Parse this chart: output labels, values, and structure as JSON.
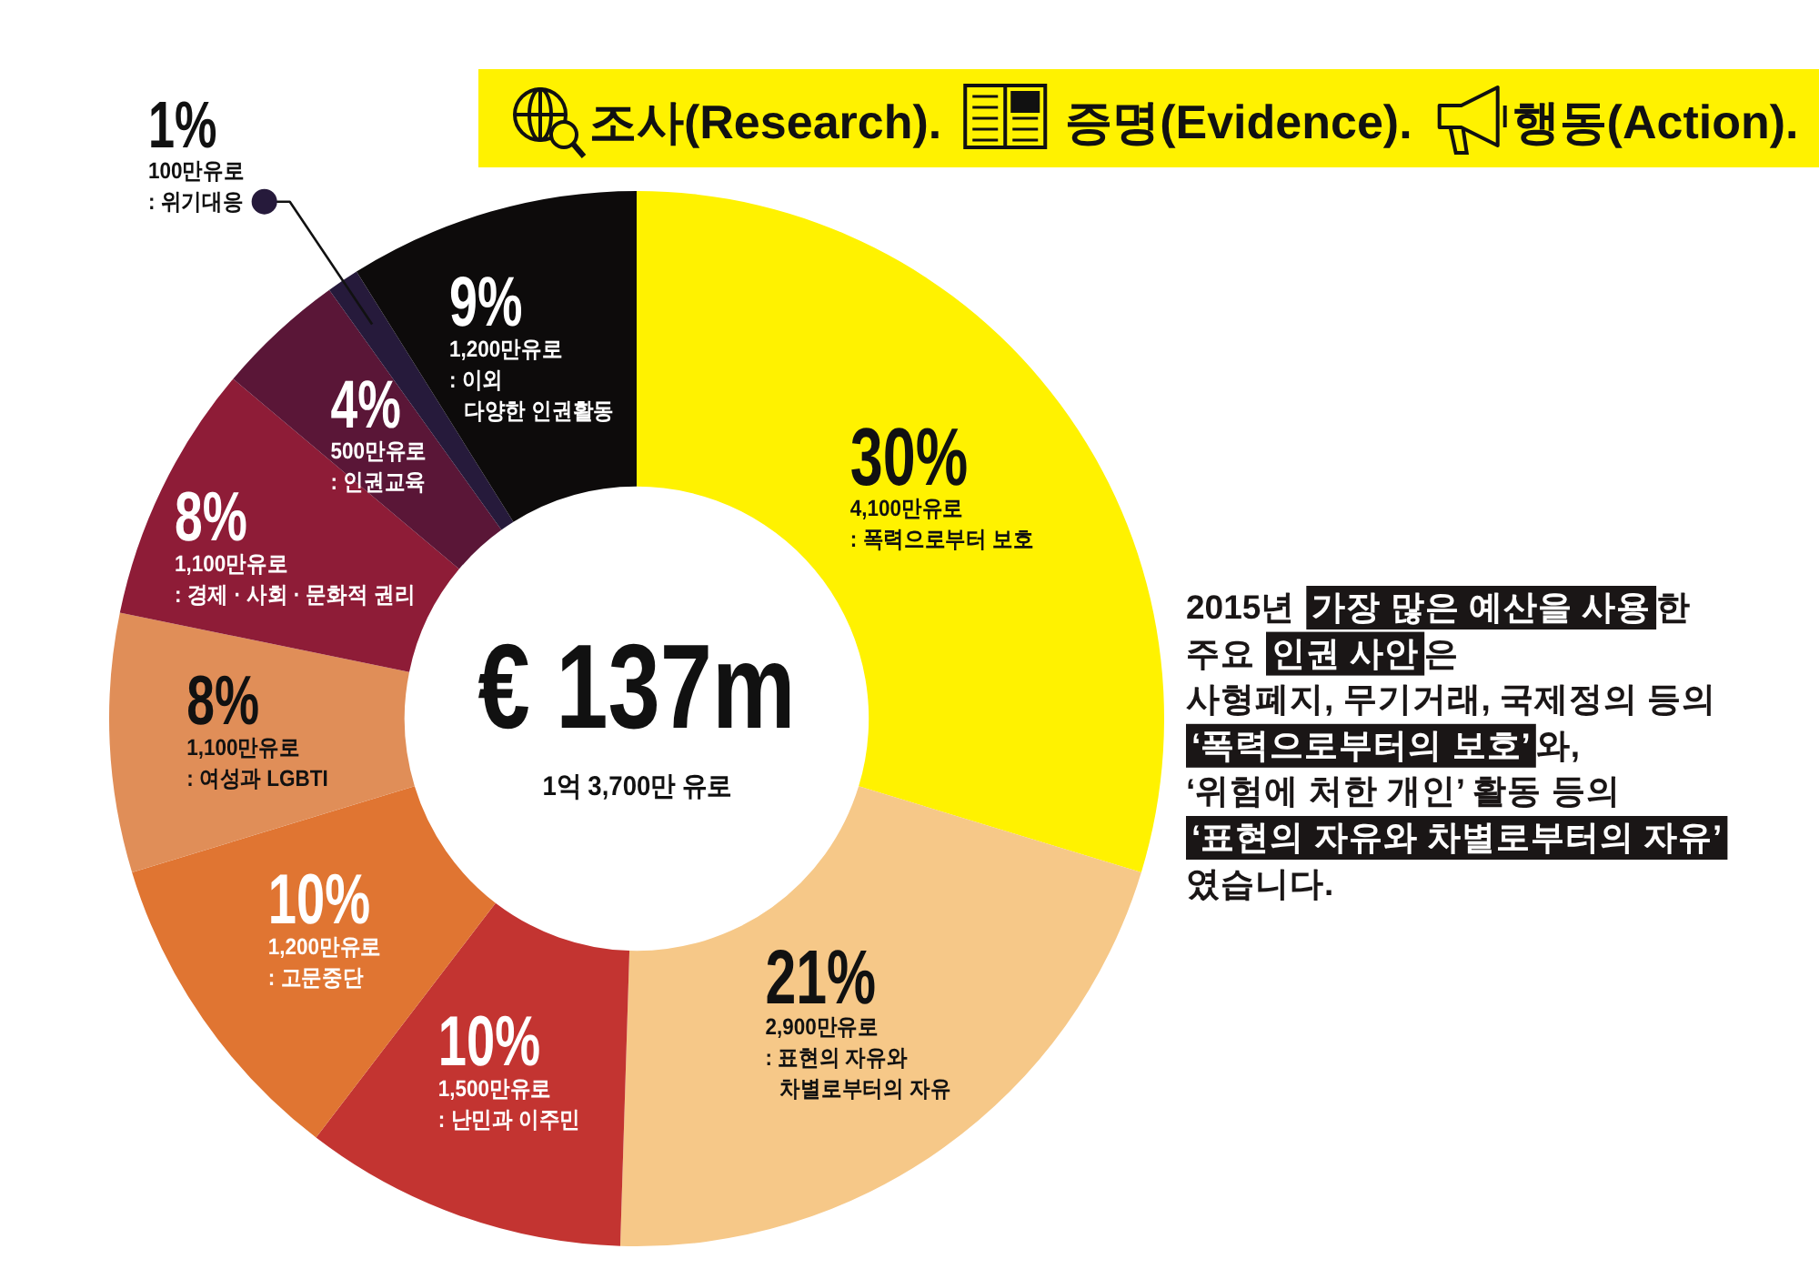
{
  "chart_data": {
    "type": "donut",
    "categories": [
      ": 폭력으로부터 보호",
      ": 표현의 자유와\n차별로부터의 자유",
      ": 난민과 이주민",
      ": 고문중단",
      ": 여성과 LGBTI",
      ": 경제 · 사회 · 문화적 권리",
      ": 인권교육",
      ": 위기대응",
      ": 이외\n다양한 인권활동"
    ],
    "values": [
      30,
      21,
      10,
      10,
      8,
      8,
      4,
      1,
      9
    ],
    "value_labels": [
      "30%",
      "21%",
      "10%",
      "10%",
      "8%",
      "8%",
      "4%",
      "1%",
      "9%"
    ],
    "colors": [
      "#fff200",
      "#f6c888",
      "#c33431",
      "#e07532",
      "#e08e58",
      "#8e1c37",
      "#5a1637",
      "#261a3b",
      "#0d0b0b"
    ],
    "annotations": [
      "조사(Research).",
      "증명(Evidence).",
      "행동(Action).",
      "€ 137m",
      "1억 3,700만 유로",
      "2015년",
      "가장 많은 예산을 사용",
      "한",
      "주요",
      "인권 사안",
      "은",
      "사형폐지, 무기거래, 국제정의 등의",
      "‘폭력으로부터의 보호’",
      "와,",
      "‘위험에 처한 개인’ 활동 등의",
      "‘표현의 자유와 차별로부터의 자유’",
      "였습니다.",
      {
        "text": "4,100만유로",
        "x": ": 폭력으로부터 보호"
      },
      {
        "text": "2,900만유로",
        "x": ": 표현의 자유와\n차별로부터의 자유"
      },
      {
        "text": "1,500만유로",
        "x": ": 난민과 이주민"
      },
      {
        "text": "1,200만유로",
        "x": ": 고문중단"
      },
      {
        "text": "1,100만유로",
        "x": ": 여성과 LGBTI"
      },
      {
        "text": "1,100만유로",
        "x": ": 경제 · 사회 · 문화적 권리"
      },
      {
        "text": "500만유로",
        "x": ": 인권교육"
      },
      {
        "text": "100만유로",
        "x": ": 위기대응"
      },
      {
        "text": "1,200만유로",
        "x": ": 이외\n다양한 인권활동"
      }
    ]
  }
}
